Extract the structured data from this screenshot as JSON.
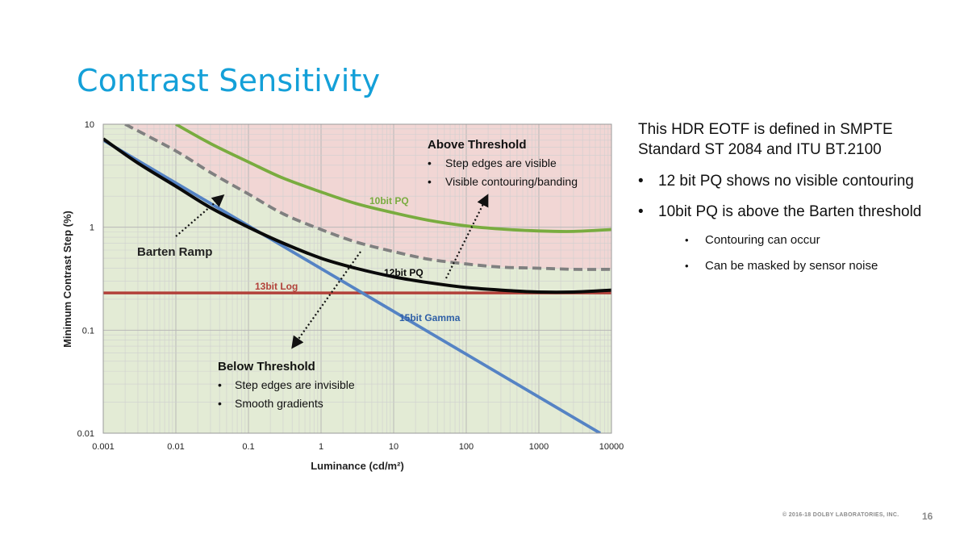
{
  "slide": {
    "title": "Contrast Sensitivity",
    "footer": "© 2016-18 DOLBY LABORATORIES, INC.",
    "page_number": "16"
  },
  "panel": {
    "intro": "This HDR EOTF is defined in SMPTE Standard ST 2084 and ITU BT.2100",
    "bullets": [
      "12 bit PQ shows no visible contouring",
      "10bit PQ is above the Barten threshold"
    ],
    "sub_bullets": [
      "Contouring can occur",
      "Can be masked by sensor noise"
    ],
    "bullet_glyph": "•"
  },
  "chart_data": {
    "type": "line",
    "x_scale": "log",
    "y_scale": "log",
    "xlim": [
      0.001,
      10000
    ],
    "ylim": [
      0.01,
      10
    ],
    "xlabel": "Luminance (cd/m²)",
    "ylabel": "Minimum Contrast Step (%)",
    "x_ticks": [
      "0.001",
      "0.01",
      "0.1",
      "1",
      "10",
      "100",
      "1000",
      "10000"
    ],
    "y_ticks": [
      "0.01",
      "0.1",
      "1",
      "10"
    ],
    "grid": true,
    "regions": [
      {
        "name": "above",
        "color": "#f1d6d4"
      },
      {
        "name": "below",
        "color": "#e3ebd5"
      }
    ],
    "series": [
      {
        "name": "10bit PQ",
        "color": "#79ac3f",
        "style": "solid",
        "x": [
          0.01,
          0.03,
          0.1,
          0.3,
          1,
          3,
          10,
          30,
          100,
          300,
          1000,
          3000,
          10000
        ],
        "y": [
          10,
          6.5,
          4.3,
          3.0,
          2.2,
          1.7,
          1.38,
          1.17,
          1.03,
          0.96,
          0.92,
          0.91,
          0.95
        ]
      },
      {
        "name": "12bit PQ",
        "color": "#0a0a0a",
        "style": "solid",
        "x": [
          0.001,
          0.003,
          0.01,
          0.03,
          0.1,
          0.3,
          1,
          3,
          10,
          30,
          100,
          300,
          1000,
          3000,
          10000
        ],
        "y": [
          7.2,
          4.2,
          2.5,
          1.55,
          1.0,
          0.7,
          0.5,
          0.4,
          0.33,
          0.29,
          0.26,
          0.245,
          0.235,
          0.235,
          0.245
        ]
      },
      {
        "name": "Barten Ramp",
        "color": "#808080",
        "style": "dashed",
        "x": [
          0.002,
          0.01,
          0.03,
          0.1,
          0.3,
          1,
          3,
          10,
          30,
          100,
          300,
          1000,
          3000,
          10000
        ],
        "y": [
          10,
          5.5,
          3.4,
          2.1,
          1.35,
          0.95,
          0.72,
          0.58,
          0.49,
          0.44,
          0.41,
          0.4,
          0.39,
          0.39
        ]
      },
      {
        "name": "13bit Log",
        "color": "#b2403a",
        "style": "solid",
        "x": [
          0.001,
          10000
        ],
        "y": [
          0.23,
          0.23
        ]
      },
      {
        "name": "15bit Gamma",
        "color": "#5583c4",
        "style": "solid",
        "x": [
          0.001,
          7000
        ],
        "y": [
          7.0,
          0.01
        ]
      }
    ],
    "annotations": [
      {
        "title": "Above Threshold",
        "items": [
          "Step edges are visible",
          "Visible contouring/banding"
        ]
      },
      {
        "title": "Below Threshold",
        "items": [
          "Step edges are invisible",
          "Smooth gradients"
        ]
      }
    ]
  }
}
